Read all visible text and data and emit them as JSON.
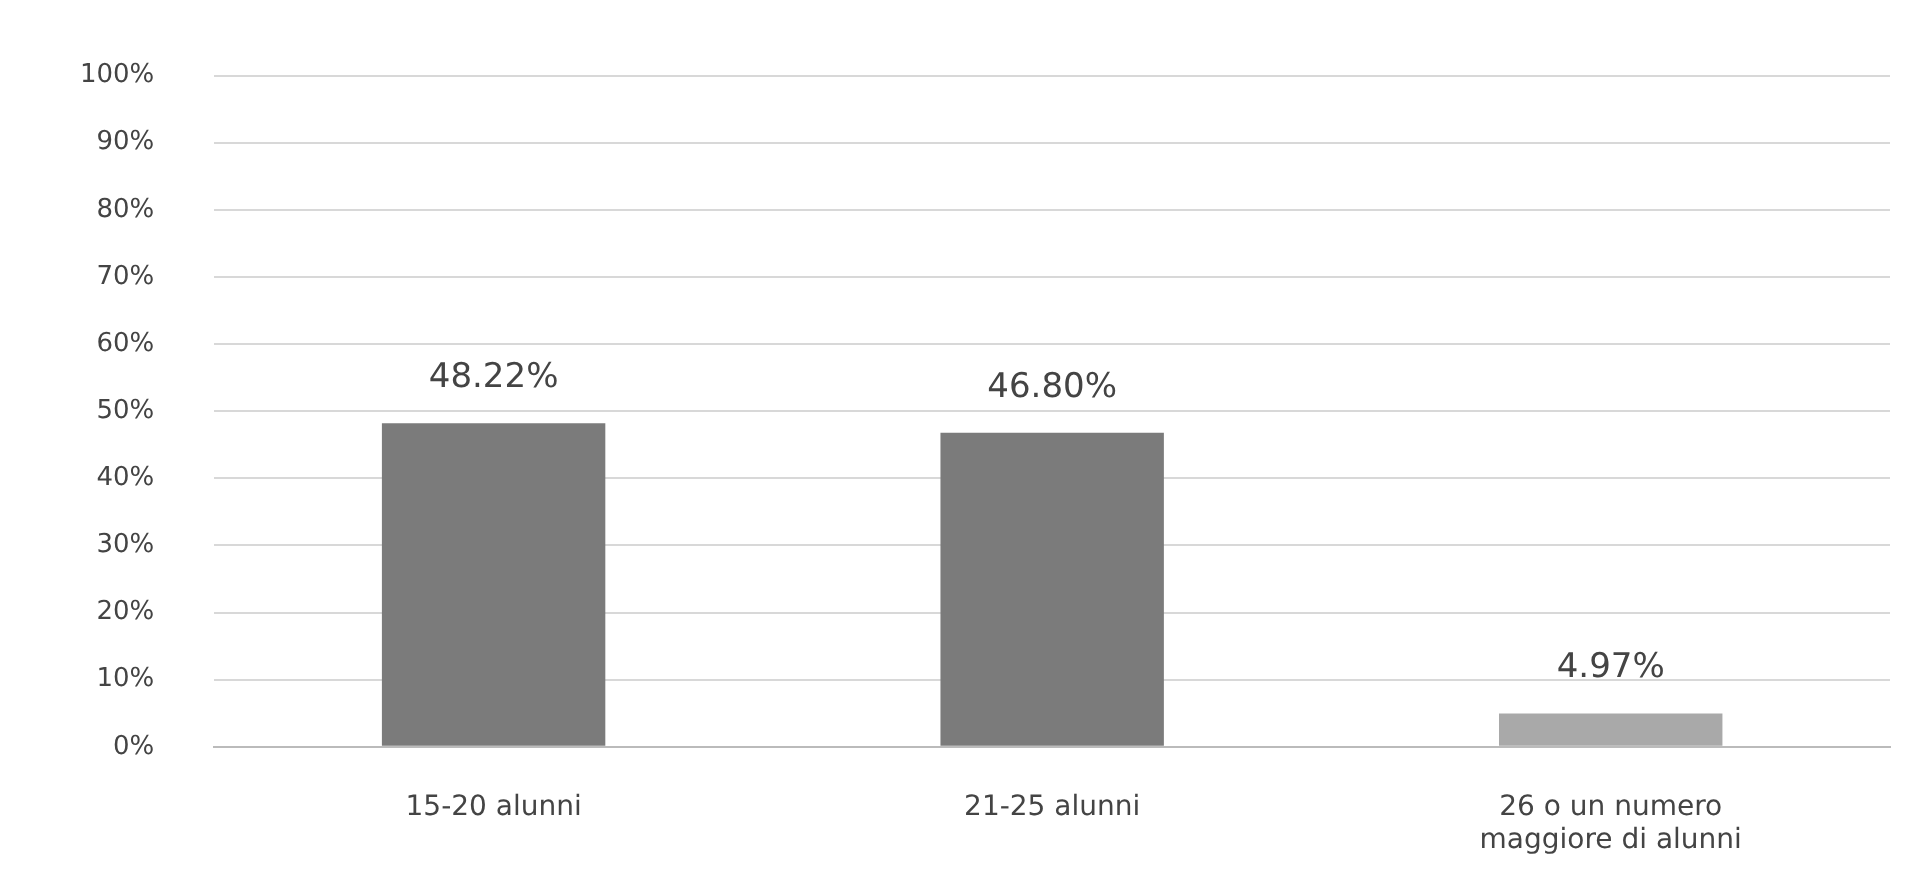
{
  "chart_data": {
    "type": "bar",
    "categories": [
      "15-20 alunni",
      "21-25 alunni",
      "26 o un numero maggiore di alunni"
    ],
    "values": [
      48.22,
      46.8,
      4.97
    ],
    "colors": [
      "#7b7b7b",
      "#7b7b7b",
      "#a9a9a9"
    ],
    "value_labels": [
      "48.22%",
      "46.80%",
      "4.97%"
    ],
    "ylim": [
      0,
      100
    ],
    "yticks": [
      {
        "value": 0,
        "label": "0%"
      },
      {
        "value": 10,
        "label": "10%"
      },
      {
        "value": 20,
        "label": "20%"
      },
      {
        "value": 30,
        "label": "30%"
      },
      {
        "value": 40,
        "label": "40%"
      },
      {
        "value": 50,
        "label": "50%"
      },
      {
        "value": 60,
        "label": "60%"
      },
      {
        "value": 70,
        "label": "70%"
      },
      {
        "value": 80,
        "label": "80%"
      },
      {
        "value": 90,
        "label": "90%"
      },
      {
        "value": 100,
        "label": "100%"
      }
    ],
    "grid": "y",
    "legend": false
  }
}
